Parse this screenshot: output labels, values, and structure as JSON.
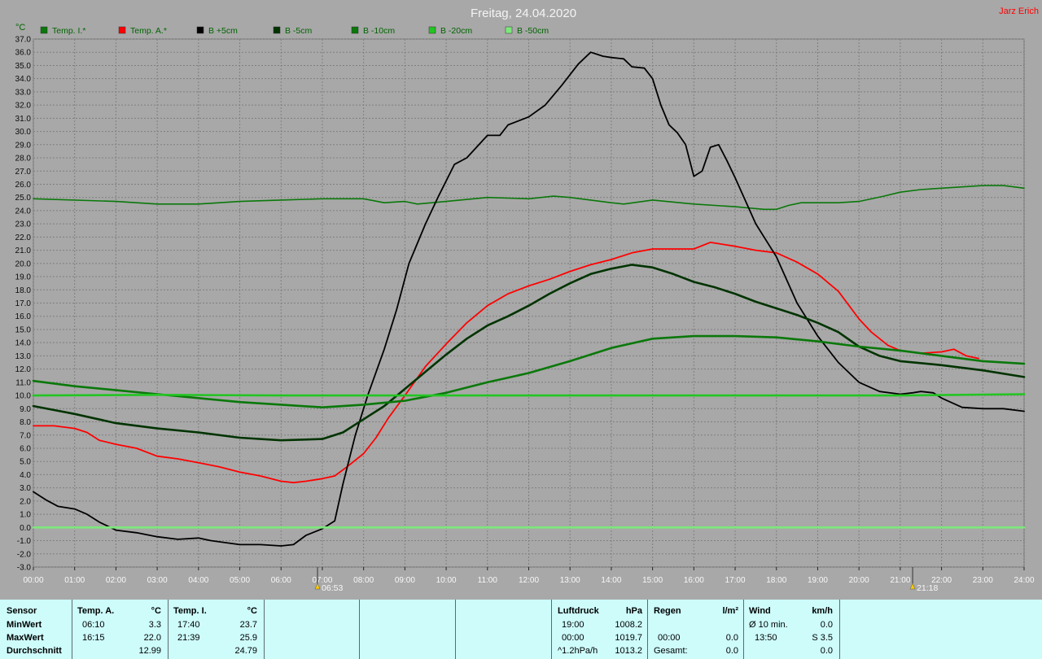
{
  "window": {
    "title": "Freitag, 24.04.2020",
    "author": "Jarz Erich"
  },
  "chart_data": {
    "type": "line",
    "ylabel": "°C",
    "ylim": [
      -3.0,
      37.0
    ],
    "y_ticks": [
      "-3.0",
      "-2.0",
      "-1.0",
      "0.0",
      "1.0",
      "2.0",
      "3.0",
      "4.0",
      "5.0",
      "6.0",
      "7.0",
      "8.0",
      "9.0",
      "10.0",
      "11.0",
      "12.0",
      "13.0",
      "14.0",
      "15.0",
      "16.0",
      "17.0",
      "18.0",
      "19.0",
      "20.0",
      "21.0",
      "22.0",
      "23.0",
      "24.0",
      "25.0",
      "26.0",
      "27.0",
      "28.0",
      "29.0",
      "30.0",
      "31.0",
      "32.0",
      "33.0",
      "34.0",
      "35.0",
      "36.0",
      "37.0"
    ],
    "x_ticks": [
      "00:00",
      "01:00",
      "02:00",
      "03:00",
      "04:00",
      "05:00",
      "06:00",
      "07:00",
      "08:00",
      "09:00",
      "10:00",
      "11:00",
      "12:00",
      "13:00",
      "14:00",
      "15:00",
      "16:00",
      "17:00",
      "18:00",
      "19:00",
      "20:00",
      "21:00",
      "22:00",
      "23:00",
      "24:00"
    ],
    "xlim_hours": [
      0,
      24
    ],
    "grid": true,
    "legend_position": "top",
    "sunrise": {
      "hour": 6.883,
      "label": "06:53"
    },
    "sunset": {
      "hour": 21.3,
      "label": "21:18"
    },
    "series": [
      {
        "name": "Temp. I.*",
        "color": "#0a780a",
        "width": 1.6,
        "points": [
          [
            0,
            24.9
          ],
          [
            2,
            24.7
          ],
          [
            3,
            24.5
          ],
          [
            4,
            24.5
          ],
          [
            5,
            24.7
          ],
          [
            6,
            24.8
          ],
          [
            7,
            24.9
          ],
          [
            8,
            24.9
          ],
          [
            8.5,
            24.6
          ],
          [
            9,
            24.7
          ],
          [
            9.3,
            24.5
          ],
          [
            10,
            24.7
          ],
          [
            11,
            25.0
          ],
          [
            12,
            24.9
          ],
          [
            12.6,
            25.1
          ],
          [
            13,
            25.0
          ],
          [
            14,
            24.6
          ],
          [
            14.3,
            24.5
          ],
          [
            15,
            24.8
          ],
          [
            16,
            24.5
          ],
          [
            17,
            24.3
          ],
          [
            17.7,
            24.1
          ],
          [
            18,
            24.1
          ],
          [
            18.3,
            24.4
          ],
          [
            18.6,
            24.6
          ],
          [
            19.5,
            24.6
          ],
          [
            20,
            24.7
          ],
          [
            20.6,
            25.1
          ],
          [
            21,
            25.4
          ],
          [
            21.5,
            25.6
          ],
          [
            22,
            25.7
          ],
          [
            23,
            25.9
          ],
          [
            23.5,
            25.9
          ],
          [
            24,
            25.7
          ]
        ]
      },
      {
        "name": "Temp. A.*",
        "color": "#ff0000",
        "width": 1.8,
        "points": [
          [
            0,
            7.7
          ],
          [
            0.5,
            7.7
          ],
          [
            1,
            7.5
          ],
          [
            1.3,
            7.2
          ],
          [
            1.6,
            6.6
          ],
          [
            2,
            6.3
          ],
          [
            2.5,
            6.0
          ],
          [
            3,
            5.4
          ],
          [
            3.5,
            5.2
          ],
          [
            4,
            4.9
          ],
          [
            4.5,
            4.6
          ],
          [
            5,
            4.2
          ],
          [
            5.5,
            3.9
          ],
          [
            6,
            3.5
          ],
          [
            6.3,
            3.4
          ],
          [
            6.6,
            3.5
          ],
          [
            7,
            3.7
          ],
          [
            7.3,
            3.9
          ],
          [
            7.6,
            4.6
          ],
          [
            8,
            5.6
          ],
          [
            8.3,
            6.8
          ],
          [
            8.6,
            8.3
          ],
          [
            9,
            10.0
          ],
          [
            9.5,
            12.2
          ],
          [
            10,
            13.9
          ],
          [
            10.5,
            15.5
          ],
          [
            11,
            16.8
          ],
          [
            11.5,
            17.7
          ],
          [
            12,
            18.3
          ],
          [
            12.5,
            18.8
          ],
          [
            13,
            19.4
          ],
          [
            13.5,
            19.9
          ],
          [
            14,
            20.3
          ],
          [
            14.5,
            20.8
          ],
          [
            15,
            21.1
          ],
          [
            15.5,
            21.1
          ],
          [
            16,
            21.1
          ],
          [
            16.4,
            21.6
          ],
          [
            17,
            21.3
          ],
          [
            17.5,
            21.0
          ],
          [
            18,
            20.8
          ],
          [
            18.5,
            20.1
          ],
          [
            19,
            19.2
          ],
          [
            19.5,
            17.9
          ],
          [
            20,
            15.8
          ],
          [
            20.3,
            14.8
          ],
          [
            20.7,
            13.8
          ],
          [
            21,
            13.4
          ],
          [
            21.5,
            13.2
          ],
          [
            22,
            13.3
          ],
          [
            22.3,
            13.5
          ],
          [
            22.6,
            13.0
          ],
          [
            22.9,
            12.8
          ]
        ]
      },
      {
        "name": "B +5cm",
        "color": "#000000",
        "width": 1.8,
        "points": [
          [
            0,
            2.7
          ],
          [
            0.3,
            2.1
          ],
          [
            0.6,
            1.6
          ],
          [
            1,
            1.4
          ],
          [
            1.3,
            1.0
          ],
          [
            1.6,
            0.4
          ],
          [
            2,
            -0.2
          ],
          [
            2.5,
            -0.4
          ],
          [
            3,
            -0.7
          ],
          [
            3.5,
            -0.9
          ],
          [
            4,
            -0.8
          ],
          [
            4.3,
            -1.0
          ],
          [
            5,
            -1.3
          ],
          [
            5.5,
            -1.3
          ],
          [
            6,
            -1.4
          ],
          [
            6.3,
            -1.3
          ],
          [
            6.6,
            -0.6
          ],
          [
            7,
            -0.1
          ],
          [
            7.3,
            0.5
          ],
          [
            7.5,
            3.3
          ],
          [
            7.8,
            7.0
          ],
          [
            8.1,
            10.0
          ],
          [
            8.5,
            13.5
          ],
          [
            8.8,
            16.5
          ],
          [
            9.1,
            20.0
          ],
          [
            9.5,
            23.0
          ],
          [
            9.8,
            25.0
          ],
          [
            10.2,
            27.5
          ],
          [
            10.5,
            28.0
          ],
          [
            11,
            29.7
          ],
          [
            11.3,
            29.7
          ],
          [
            11.5,
            30.5
          ],
          [
            12,
            31.1
          ],
          [
            12.4,
            32.0
          ],
          [
            12.8,
            33.5
          ],
          [
            13.2,
            35.1
          ],
          [
            13.5,
            36.0
          ],
          [
            13.8,
            35.7
          ],
          [
            14,
            35.6
          ],
          [
            14.3,
            35.5
          ],
          [
            14.5,
            34.9
          ],
          [
            14.8,
            34.8
          ],
          [
            15,
            34.0
          ],
          [
            15.2,
            32.0
          ],
          [
            15.4,
            30.5
          ],
          [
            15.6,
            29.9
          ],
          [
            15.8,
            29.0
          ],
          [
            16,
            26.6
          ],
          [
            16.2,
            27.0
          ],
          [
            16.4,
            28.8
          ],
          [
            16.6,
            29.0
          ],
          [
            16.8,
            27.8
          ],
          [
            17,
            26.5
          ],
          [
            17.5,
            23.0
          ],
          [
            18,
            20.5
          ],
          [
            18.5,
            17.0
          ],
          [
            19,
            14.5
          ],
          [
            19.5,
            12.5
          ],
          [
            20,
            11.0
          ],
          [
            20.5,
            10.3
          ],
          [
            21,
            10.1
          ],
          [
            21.3,
            10.2
          ],
          [
            21.5,
            10.3
          ],
          [
            21.8,
            10.2
          ],
          [
            22,
            9.8
          ],
          [
            22.5,
            9.1
          ],
          [
            23,
            9.0
          ],
          [
            23.5,
            9.0
          ],
          [
            24,
            8.8
          ]
        ]
      },
      {
        "name": "B -5cm",
        "color": "#003300",
        "width": 2.6,
        "points": [
          [
            0,
            9.2
          ],
          [
            1,
            8.6
          ],
          [
            2,
            7.9
          ],
          [
            3,
            7.5
          ],
          [
            4,
            7.2
          ],
          [
            5,
            6.8
          ],
          [
            6,
            6.6
          ],
          [
            7,
            6.7
          ],
          [
            7.5,
            7.2
          ],
          [
            8,
            8.2
          ],
          [
            8.5,
            9.2
          ],
          [
            9,
            10.5
          ],
          [
            9.5,
            11.8
          ],
          [
            10,
            13.1
          ],
          [
            10.5,
            14.3
          ],
          [
            11,
            15.3
          ],
          [
            11.5,
            16.0
          ],
          [
            12,
            16.8
          ],
          [
            12.5,
            17.7
          ],
          [
            13,
            18.5
          ],
          [
            13.5,
            19.2
          ],
          [
            14,
            19.6
          ],
          [
            14.5,
            19.9
          ],
          [
            15,
            19.7
          ],
          [
            15.5,
            19.2
          ],
          [
            16,
            18.6
          ],
          [
            16.5,
            18.2
          ],
          [
            17,
            17.7
          ],
          [
            17.5,
            17.1
          ],
          [
            18,
            16.6
          ],
          [
            18.5,
            16.1
          ],
          [
            19,
            15.5
          ],
          [
            19.5,
            14.8
          ],
          [
            20,
            13.7
          ],
          [
            20.5,
            13.0
          ],
          [
            21,
            12.6
          ],
          [
            22,
            12.3
          ],
          [
            23,
            11.9
          ],
          [
            24,
            11.4
          ]
        ]
      },
      {
        "name": "B -10cm",
        "color": "#0a780a",
        "width": 2.6,
        "points": [
          [
            0,
            11.1
          ],
          [
            1,
            10.7
          ],
          [
            2,
            10.4
          ],
          [
            3,
            10.1
          ],
          [
            4,
            9.8
          ],
          [
            5,
            9.5
          ],
          [
            6,
            9.3
          ],
          [
            7,
            9.1
          ],
          [
            8,
            9.3
          ],
          [
            9,
            9.6
          ],
          [
            10,
            10.2
          ],
          [
            11,
            11.0
          ],
          [
            12,
            11.7
          ],
          [
            13,
            12.6
          ],
          [
            14,
            13.6
          ],
          [
            15,
            14.3
          ],
          [
            16,
            14.5
          ],
          [
            17,
            14.5
          ],
          [
            18,
            14.4
          ],
          [
            19,
            14.1
          ],
          [
            20,
            13.7
          ],
          [
            21,
            13.4
          ],
          [
            22,
            13.0
          ],
          [
            23,
            12.6
          ],
          [
            24,
            12.4
          ]
        ]
      },
      {
        "name": "B -20cm",
        "color": "#22c522",
        "width": 2.6,
        "points": [
          [
            0,
            10.0
          ],
          [
            3,
            10.05
          ],
          [
            6,
            10.0
          ],
          [
            9,
            10.0
          ],
          [
            12,
            10.0
          ],
          [
            15,
            10.0
          ],
          [
            18,
            10.0
          ],
          [
            21,
            10.0
          ],
          [
            24,
            10.1
          ]
        ]
      },
      {
        "name": "B -50cm",
        "color": "#7ce87c",
        "width": 2.6,
        "points": [
          [
            0,
            0.0
          ],
          [
            24,
            0.0
          ]
        ]
      }
    ]
  },
  "stats": {
    "sensor_header": "Sensor",
    "min_label": "MinWert",
    "max_label": "MaxWert",
    "avg_label": "Durchschnitt",
    "temp_a": {
      "title": "Temp. A.",
      "unit": "°C",
      "min_time": "06:10",
      "min_val": "3.3",
      "max_time": "16:15",
      "max_val": "22.0",
      "avg_val": "12.99"
    },
    "temp_i": {
      "title": "Temp. I.",
      "unit": "°C",
      "min_time": "17:40",
      "min_val": "23.7",
      "max_time": "21:39",
      "max_val": "25.9",
      "avg_val": "24.79"
    },
    "luftdruck": {
      "title": "Luftdruck",
      "unit": "hPa",
      "r1_time": "19:00",
      "r1_val": "1008.2",
      "r2_time": "00:00",
      "r2_val": "1019.7",
      "r3_label": "^1.2hPa/h",
      "r3_val": "1013.2"
    },
    "regen": {
      "title": "Regen",
      "unit": "l/m²",
      "r2_time": "00:00",
      "r2_val": "0.0",
      "r3_label": "Gesamt:",
      "r3_val": "0.0"
    },
    "wind": {
      "title": "Wind",
      "unit": "km/h",
      "r1_label": "Ø 10 min.",
      "r1_val": "0.0",
      "r2_time": "13:50",
      "r2_val": "S 3.5",
      "r3_val": "0.0"
    }
  }
}
